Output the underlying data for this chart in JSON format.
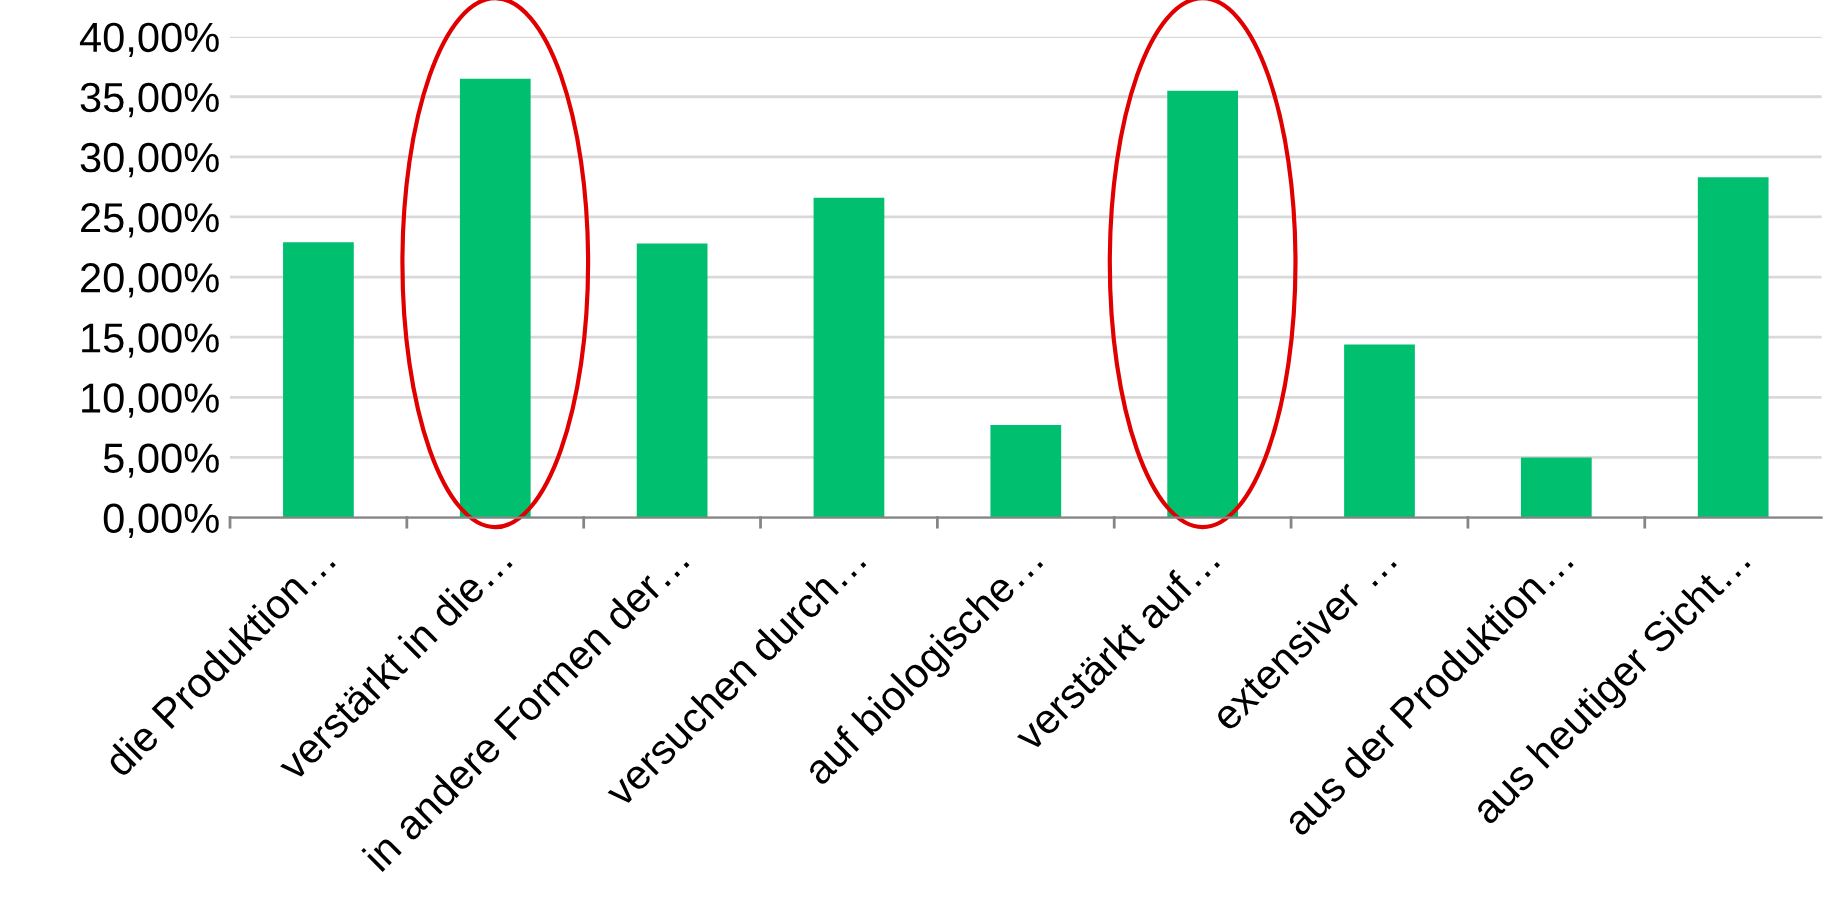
{
  "chart_data": {
    "type": "bar",
    "categories": [
      "die Produktion…",
      "verstärkt in die…",
      "in andere Formen der…",
      "versuchen durch…",
      "auf biologische…",
      "verstärkt auf…",
      "extensiver …",
      "aus der Produktion…",
      "aus heutiger Sicht…"
    ],
    "values": [
      22.9,
      36.5,
      22.8,
      26.6,
      7.7,
      35.5,
      14.4,
      5.0,
      28.3
    ],
    "color": "#00bf6f",
    "ylim": [
      0,
      40
    ],
    "yticks": [
      {
        "value": 0,
        "label": "0,00%"
      },
      {
        "value": 5,
        "label": "5,00%"
      },
      {
        "value": 10,
        "label": "10,00%"
      },
      {
        "value": 15,
        "label": "15,00%"
      },
      {
        "value": 20,
        "label": "20,00%"
      },
      {
        "value": 25,
        "label": "25,00%"
      },
      {
        "value": 30,
        "label": "30,00%"
      },
      {
        "value": 35,
        "label": "35,00%"
      },
      {
        "value": 40,
        "label": "40,00%"
      }
    ],
    "grid": "y"
  }
}
